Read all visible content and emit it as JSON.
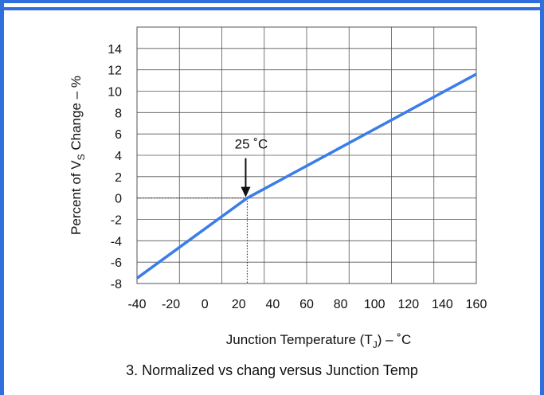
{
  "chart_data": {
    "type": "line",
    "xlabel_main": "Junction Temperature (T",
    "xlabel_sub": "J",
    "xlabel_end": ") – ˚C",
    "ylabel_main": "Percent of V",
    "ylabel_sub": "S",
    "ylabel_end": " Change – %",
    "xlim": [
      -40,
      160
    ],
    "ylim": [
      -8,
      16
    ],
    "x_ticks": [
      -40,
      -20,
      0,
      20,
      40,
      60,
      80,
      100,
      120,
      140,
      160
    ],
    "y_ticks": [
      -8,
      -6,
      -4,
      -2,
      0,
      2,
      4,
      6,
      8,
      10,
      12,
      14
    ],
    "grid": true,
    "series": [
      {
        "x": [
          -40,
          25,
          160
        ],
        "y": [
          -7.5,
          0,
          11.6
        ],
        "color": "#3b7de8"
      }
    ],
    "annotation": {
      "text": "25 ˚C",
      "x": 25,
      "y": 0
    }
  },
  "caption": "3. Normalized vs chang versus Junction Temp"
}
